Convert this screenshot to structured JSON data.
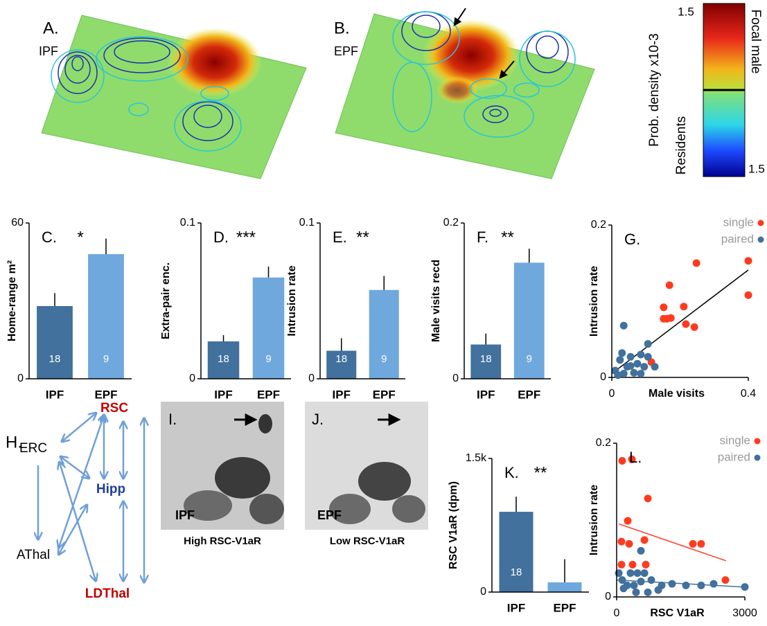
{
  "panel_a": {
    "label": "A.",
    "group": "IPF"
  },
  "panel_b": {
    "label": "B.",
    "group": "EPF"
  },
  "colorbar": {
    "top_label": "1.5",
    "bottom_label": "1.5",
    "title": "Prob. density x10-3",
    "focal": "Focal male",
    "residents": "Residents"
  },
  "diagram": {
    "label": "H.",
    "nodes": [
      {
        "label": "RSC"
      },
      {
        "label": "ERC"
      },
      {
        "label": "Hipp"
      },
      {
        "label": "AThal"
      },
      {
        "label": "LDThal"
      }
    ]
  },
  "image_i": {
    "label": "I.",
    "group": "IPF",
    "caption": "High RSC-V1aR"
  },
  "image_j": {
    "label": "J.",
    "group": "EPF",
    "caption": "Low RSC-V1aR"
  },
  "chart_data": [
    {
      "type": "bar",
      "label": "C.",
      "significance": "*",
      "ylabel": "Home-range m²",
      "categories": [
        "IPF",
        "EPF"
      ],
      "values": [
        28,
        48
      ],
      "errors": [
        5,
        6
      ],
      "n_labels": [
        "18",
        "9"
      ],
      "colors": [
        "#41719c",
        "#6fa8dc"
      ],
      "ylim": [
        0,
        60
      ],
      "yticks": [
        0,
        60
      ]
    },
    {
      "type": "bar",
      "label": "D.",
      "significance": "***",
      "ylabel": "Extra-pair enc.",
      "categories": [
        "IPF",
        "EPF"
      ],
      "values": [
        0.024,
        0.065
      ],
      "errors": [
        0.004,
        0.007
      ],
      "n_labels": [
        "18",
        "9"
      ],
      "colors": [
        "#41719c",
        "#6fa8dc"
      ],
      "ylim": [
        0,
        0.1
      ],
      "yticks": [
        0,
        0.1
      ]
    },
    {
      "type": "bar",
      "label": "E.",
      "significance": "**",
      "ylabel": "Intrusion rate",
      "categories": [
        "IPF",
        "EPF"
      ],
      "values": [
        0.018,
        0.057
      ],
      "errors": [
        0.008,
        0.009
      ],
      "n_labels": [
        "18",
        "9"
      ],
      "colors": [
        "#41719c",
        "#6fa8dc"
      ],
      "ylim": [
        0,
        0.1
      ],
      "yticks": [
        0,
        0.1
      ]
    },
    {
      "type": "bar",
      "label": "F.",
      "significance": "**",
      "ylabel": "Male visits recd",
      "categories": [
        "IPF",
        "EPF"
      ],
      "values": [
        0.044,
        0.149
      ],
      "errors": [
        0.014,
        0.018
      ],
      "n_labels": [
        "18",
        "9"
      ],
      "colors": [
        "#41719c",
        "#6fa8dc"
      ],
      "ylim": [
        0,
        0.2
      ],
      "yticks": [
        0,
        0.2
      ]
    },
    {
      "type": "scatter",
      "label": "G.",
      "ylabel": "Intrusion rate",
      "xlabel": "Male visits",
      "legend": "upper right",
      "xlim": [
        0,
        0.4
      ],
      "xticks": [
        0,
        0.4
      ],
      "ylim": [
        0,
        0.2
      ],
      "yticks": [
        0,
        0.2
      ],
      "trendline": {
        "color": "#000000",
        "x": [
          0,
          0.4
        ],
        "y": [
          0.005,
          0.141
        ]
      },
      "series": [
        {
          "name": "single",
          "color": "#ff3b1f",
          "x": [
            0.248,
            0.4,
            0.4,
            0.169,
            0.152,
            0.173,
            0.152,
            0.162,
            0.211,
            0.217,
            0.242,
            0.116
          ],
          "y": [
            0.15,
            0.153,
            0.108,
            0.121,
            0.092,
            0.078,
            0.077,
            0.077,
            0.093,
            0.07,
            0.066,
            0.02
          ]
        },
        {
          "name": "paired",
          "color": "#41719c",
          "x": [
            0.035,
            0.106,
            0.126,
            0.085,
            0.055,
            0.024,
            0.075,
            0.045,
            0.01,
            0.035,
            0.065,
            0.095,
            0.106,
            0.018,
            0.055,
            0.03,
            0.085
          ],
          "y": [
            0.068,
            0.044,
            0.014,
            0.03,
            0.027,
            0.023,
            0.018,
            0.014,
            0.009,
            0.005,
            0.006,
            0.014,
            0.027,
            0.003,
            0.015,
            0.032,
            0.005
          ]
        }
      ]
    },
    {
      "type": "bar",
      "label": "K.",
      "significance": "**",
      "ylabel": "RSC V1aR (dpm)",
      "categories": [
        "IPF",
        "EPF"
      ],
      "values": [
        901,
        109
      ],
      "errors": [
        170,
        260
      ],
      "n_labels": [
        "18",
        null
      ],
      "colors": [
        "#41719c",
        "#6fa8dc"
      ],
      "ylim": [
        0,
        1500
      ],
      "yticks": [
        0,
        {
          "value": 1500,
          "label": "1.5k"
        }
      ]
    },
    {
      "type": "scatter",
      "label": "L.",
      "ylabel": "Intrusion rate",
      "xlabel": "RSC V1aR",
      "legend": "upper right",
      "xlim": [
        0,
        3000
      ],
      "xticks": [
        0,
        3000
      ],
      "ylim": [
        0,
        0.2
      ],
      "yticks": [
        0,
        0.2
      ],
      "series": [
        {
          "name": "single",
          "color": "#ff3b1f",
          "x": [
            130,
            357,
            260,
            730,
            113,
            292,
            650,
            373,
            113,
            1784,
            1978,
            2546,
            681
          ],
          "y": [
            0.177,
            0.179,
            0.099,
            0.128,
            0.072,
            0.069,
            0.074,
            0.042,
            0.042,
            0.069,
            0.069,
            0.022,
            0.042
          ],
          "trend": {
            "x": [
              50,
              2560
            ],
            "y": [
              0.095,
              0.047
            ]
          }
        },
        {
          "name": "paired",
          "color": "#41719c",
          "x": [
            568,
            324,
            486,
            650,
            50,
            243,
            405,
            568,
            811,
            1054,
            1297,
            1622,
            1978,
            2270,
            3000,
            162,
            730,
            973,
            130,
            454
          ],
          "y": [
            0.06,
            0.031,
            0.031,
            0.031,
            0.031,
            0.015,
            0.015,
            0.02,
            0.022,
            0.015,
            0.017,
            0.015,
            0.015,
            0.017,
            0.013,
            0.011,
            0.006,
            0.009,
            0.022,
            0.006
          ],
          "trend": {
            "x": [
              0,
              2950
            ],
            "y": [
              0.022,
              0.013
            ]
          }
        }
      ]
    }
  ]
}
